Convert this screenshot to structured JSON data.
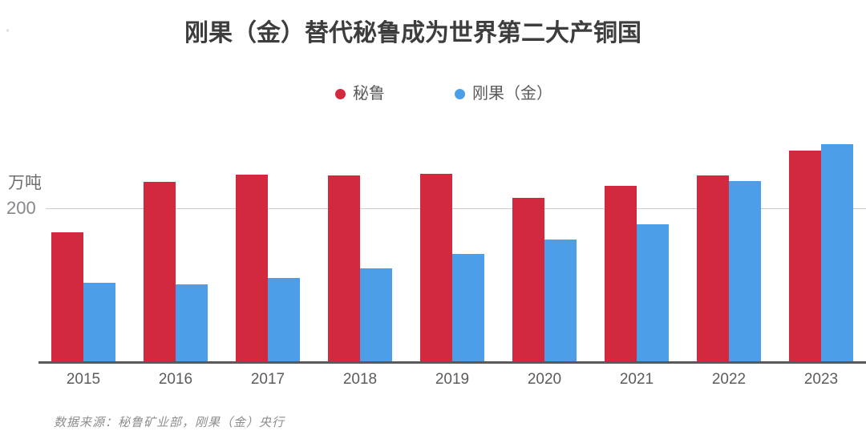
{
  "title": "刚果（金）替代秘鲁成为世界第二大产铜国",
  "legend": [
    {
      "label": "秘鲁",
      "color": "#d2293f"
    },
    {
      "label": "刚果（金）",
      "color": "#4d9ee8"
    }
  ],
  "y_axis": {
    "unit": "万吨",
    "tick_label": "200"
  },
  "source_note": "数据来源：秘鲁矿业部，刚果（金）央行",
  "colors": {
    "peru_red": "#d2293f",
    "congo_blue": "#4d9ee8",
    "title_text": "#3d3d3d",
    "axis_line": "#59595b",
    "gridline": "#cbcbcb",
    "label_text": "#5c5c5c",
    "background": "#ffffff"
  },
  "chart_data": {
    "type": "bar",
    "title": "刚果（金）替代秘鲁成为世界第二大产铜国",
    "categories": [
      "2015",
      "2016",
      "2017",
      "2018",
      "2019",
      "2020",
      "2021",
      "2022",
      "2023"
    ],
    "series": [
      {
        "id": "peru",
        "name": "秘鲁",
        "color": "#d2293f",
        "values": [
          170,
          235,
          245,
          244,
          246,
          215,
          230,
          244,
          276
        ]
      },
      {
        "id": "congo",
        "name": "刚果（金）",
        "color": "#4d9ee8",
        "values": [
          104,
          102,
          110,
          123,
          142,
          160,
          180,
          236,
          284
        ]
      }
    ],
    "xlabel": "",
    "ylabel": "万吨",
    "yticks": [
      200
    ],
    "ylim": [
      0,
      295
    ],
    "grid": "single horizontal gridline at y=200",
    "legend_position": "top-center",
    "source": "数据来源：秘鲁矿业部，刚果（金）央行"
  }
}
